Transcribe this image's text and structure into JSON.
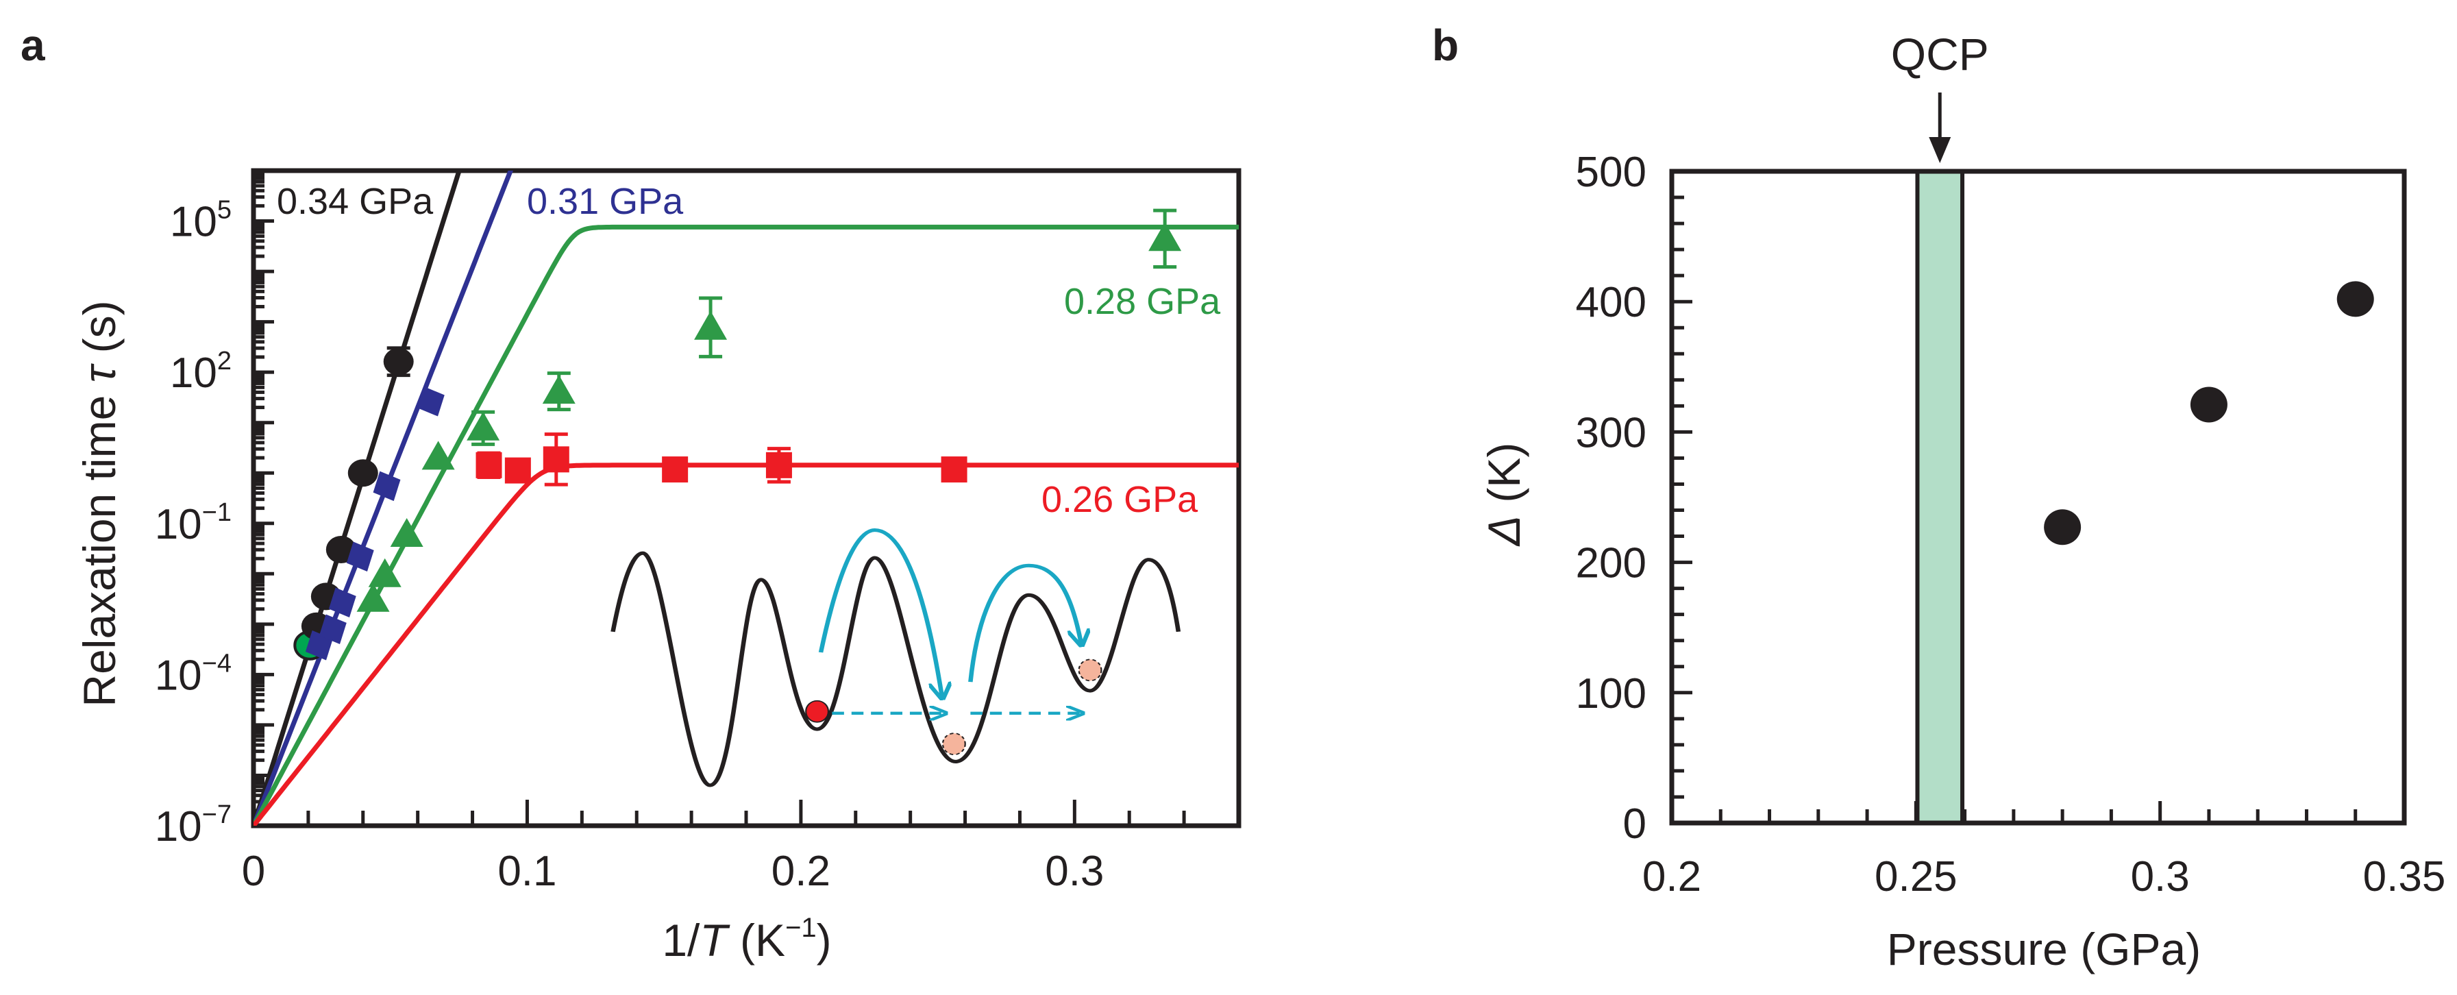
{
  "colors": {
    "black": "#231f20",
    "blue": "#2e3192",
    "green": "#2e9a47",
    "red": "#ed1c24",
    "cyan": "#1aa7c4",
    "band": "#b3dec8",
    "peach": "#f5b49c",
    "green_circle": "#00a651"
  },
  "chart_data": [
    {
      "panel": "a",
      "type": "scatter",
      "xlabel_parts": [
        "1/",
        "T",
        " (K",
        "−1",
        ")"
      ],
      "xlabel": "1/T (K−1)",
      "ylabel_parts": [
        "Relaxation time ",
        "τ",
        " (s)"
      ],
      "ylabel": "Relaxation time τ (s)",
      "xlim": [
        0,
        0.36
      ],
      "ylog10_lim": [
        -7,
        6
      ],
      "yscale": "log",
      "xticks": [
        0,
        0.1,
        0.2,
        0.3
      ],
      "xtick_labels": [
        "0",
        "0.1",
        "0.2",
        "0.3"
      ],
      "yticks_log10": [
        5,
        2,
        -1,
        -4,
        -7
      ],
      "ytick_base": "10",
      "ytick_exponents": [
        "5",
        "2",
        "−1",
        "−4",
        "−7"
      ],
      "series": [
        {
          "name": "0.34 GPa",
          "color": "#231f20",
          "marker": "circle",
          "points": [
            [
              0.023,
              -3.04
            ],
            [
              0.0265,
              -2.45
            ],
            [
              0.032,
              -1.52
            ],
            [
              0.04,
              0.0
            ],
            [
              0.053,
              2.21
            ]
          ],
          "errors": [
            null,
            null,
            null,
            null,
            0.27
          ],
          "fit": {
            "intercept": -7,
            "slope": 173,
            "plateau": null
          }
        },
        {
          "name": "0.31 GPa",
          "color": "#2e3192",
          "marker": "diamond",
          "points": [
            [
              0.024,
              -3.42
            ],
            [
              0.029,
              -3.1
            ],
            [
              0.0325,
              -2.57
            ],
            [
              0.039,
              -1.66
            ],
            [
              0.0487,
              -0.26
            ],
            [
              0.0648,
              1.42
            ]
          ],
          "errors": [
            null,
            null,
            null,
            null,
            null,
            null
          ],
          "fit": {
            "intercept": -7,
            "slope": 138.4,
            "plateau": null
          }
        },
        {
          "name": "0.28 GPa",
          "color": "#2e9a47",
          "marker": "triangle",
          "points": [
            [
              0.0437,
              -2.51
            ],
            [
              0.048,
              -2.02
            ],
            [
              0.056,
              -1.22
            ],
            [
              0.0675,
              0.31
            ],
            [
              0.0839,
              0.89
            ],
            [
              0.1116,
              1.62
            ],
            [
              0.167,
              2.89
            ],
            [
              0.333,
              4.65
            ]
          ],
          "errors": [
            null,
            null,
            null,
            null,
            0.32,
            0.36,
            0.58,
            0.56
          ],
          "fit": {
            "intercept": -7,
            "slope": 101.5,
            "plateau": 4.88
          }
        },
        {
          "name": "0.26 GPa",
          "color": "#ed1c24",
          "marker": "square",
          "points": [
            [
              0.086,
              0.155
            ],
            [
              0.0966,
              0.05
            ],
            [
              0.1106,
              0.27
            ],
            [
              0.154,
              0.07
            ],
            [
              0.192,
              0.155
            ],
            [
              0.256,
              0.07
            ]
          ],
          "errors": [
            0.24,
            null,
            0.5,
            null,
            0.33,
            null
          ],
          "fit": {
            "intercept": -7,
            "slope": 68.3,
            "plateau": 0.155
          }
        }
      ],
      "extra_points": [
        {
          "x": 0.0206,
          "log10_y": -3.42,
          "color": "#00a651",
          "marker": "circle"
        }
      ]
    },
    {
      "panel": "b",
      "type": "scatter",
      "xlabel": "Pressure (GPa)",
      "ylabel_parts": [
        "Δ",
        " (K)"
      ],
      "ylabel": "Δ (K)",
      "xlim": [
        0.2,
        0.35
      ],
      "ylim": [
        0,
        500
      ],
      "xticks": [
        0.2,
        0.25,
        0.3,
        0.35
      ],
      "xtick_labels": [
        "0.2",
        "0.25",
        "0.3",
        "0.35"
      ],
      "yticks": [
        0,
        100,
        200,
        300,
        400,
        500
      ],
      "ytick_labels": [
        "0",
        "100",
        "200",
        "300",
        "400",
        "500"
      ],
      "x": [
        0.28,
        0.31,
        0.34
      ],
      "y": [
        227,
        321,
        402
      ],
      "qcp_band": [
        0.2503,
        0.2595
      ],
      "annotation": "QCP"
    }
  ],
  "panel_labels": {
    "a": "a",
    "b": "b"
  }
}
